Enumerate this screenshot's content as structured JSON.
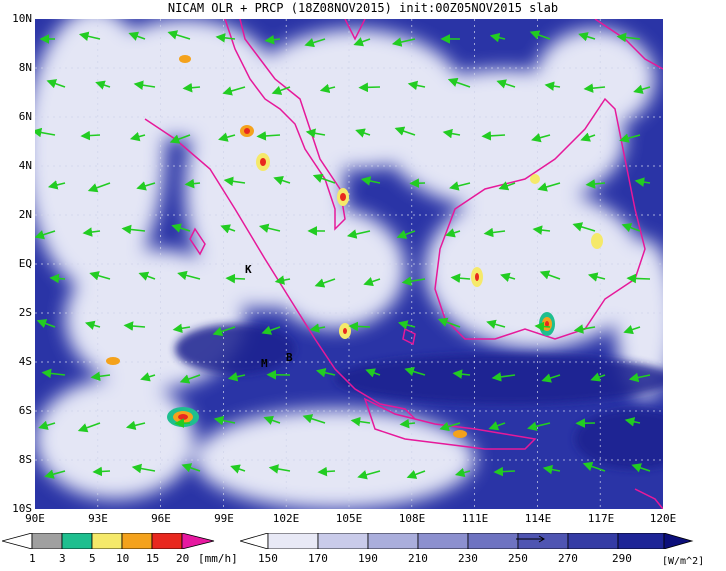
{
  "title": "NICAM OLR + PRCP (18Z08NOV2015) init:00Z05NOV2015 slab",
  "map": {
    "lat_labels": [
      "10N",
      "8N",
      "6N",
      "4N",
      "2N",
      "EQ",
      "2S",
      "4S",
      "6S",
      "8S",
      "10S"
    ],
    "lon_labels": [
      "90E",
      "93E",
      "96E",
      "99E",
      "102E",
      "105E",
      "108E",
      "111E",
      "114E",
      "117E",
      "120E"
    ],
    "place_markers": [
      "K",
      "M",
      "B"
    ],
    "colors": {
      "ocean_low_olr": "#1f2a9e",
      "cloud_high": "#f3f4fb",
      "coast": "#e6199a",
      "wind_arrow": "#22cc22"
    }
  },
  "legend_prcp": {
    "ticks": [
      "1",
      "3",
      "5",
      "10",
      "15",
      "20"
    ],
    "unit": "[mm/h]",
    "colors": [
      "#a0a0a0",
      "#1fbf8f",
      "#f5e96a",
      "#f4a21c",
      "#e8281f",
      "#e619a0"
    ]
  },
  "legend_olr": {
    "ticks": [
      "150",
      "170",
      "190",
      "210",
      "230",
      "250",
      "270",
      "290"
    ],
    "unit": "[W/m^2]",
    "colors": [
      "#ffffff",
      "#e8e9f6",
      "#c9cbea",
      "#aaaedc",
      "#8c90cf",
      "#6e73c1",
      "#4f55b2",
      "#353ca5",
      "#1e2597"
    ]
  }
}
